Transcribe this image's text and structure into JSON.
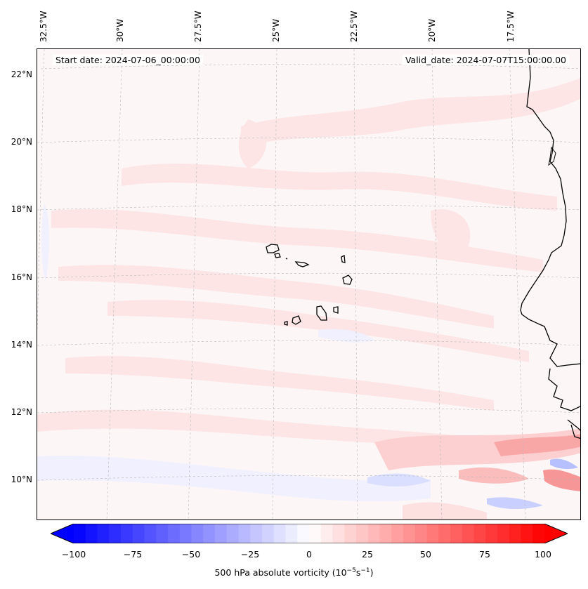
{
  "map": {
    "start_date": "Start date: 2024-07-06_00:00:00",
    "valid_date": "Valid_date: 2024-07-07T15:00:00.00",
    "lon_labels": [
      "32.5°W",
      "30°W",
      "27.5°W",
      "25°W",
      "22.5°W",
      "20°W",
      "17.5°W"
    ],
    "lat_labels": [
      "22°N",
      "20°N",
      "18°N",
      "16°N",
      "14°N",
      "12°N",
      "10°N"
    ],
    "field": "500 hPa absolute vorticity",
    "gridlines": true,
    "colormap": "bwr",
    "colors": {
      "negative": "#0000ff",
      "zero": "#ffffff",
      "positive": "#ff0000",
      "coastline": "#000000"
    }
  },
  "colorbar": {
    "ticks": [
      "−100",
      "−75",
      "−50",
      "−25",
      "0",
      "25",
      "50",
      "75",
      "100"
    ],
    "range": [
      -100,
      100
    ],
    "levels": 41,
    "title_text": "500 hPa absolute vorticity (10",
    "title_exp1": "−5",
    "title_mid": "s",
    "title_exp2": "−1",
    "title_end": ")"
  }
}
